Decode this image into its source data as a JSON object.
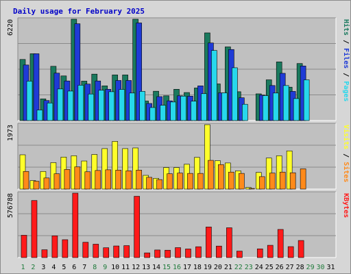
{
  "chart_data": {
    "type": "bar",
    "title": "Daily usage for February 2025",
    "colors": {
      "hits": "#1a7a5e",
      "files": "#1f3bd6",
      "pages": "#27d8ec",
      "visits": "#ffff2a",
      "sites": "#ff8a1a",
      "kbytes": "#ff1a1a",
      "background": "#d6d6d6",
      "plot": "#c0c0c0",
      "title_text": "#0000c8",
      "weekend_label": "#1e7a3a"
    },
    "days": [
      "1",
      "2",
      "3",
      "4",
      "5",
      "6",
      "7",
      "8",
      "9",
      "10",
      "11",
      "12",
      "13",
      "14",
      "15",
      "16",
      "17",
      "18",
      "19",
      "20",
      "21",
      "22",
      "23",
      "24",
      "25",
      "26",
      "27",
      "28",
      "29",
      "30",
      "31"
    ],
    "weekend_days": [
      "1",
      "2",
      "8",
      "9",
      "15",
      "16",
      "22",
      "23",
      "29",
      "30"
    ],
    "panels": [
      {
        "id": "hits-files-pages",
        "max_label": "6220",
        "ymax": 6220,
        "legend": [
          {
            "text": "Pages",
            "color_key": "pages"
          },
          {
            "text": "Files",
            "color_key": "files"
          },
          {
            "text": "Hits",
            "color_key": "hits"
          }
        ],
        "series": [
          {
            "name": "Hits",
            "color_key": "hits",
            "values": [
              3750,
              4100,
              1330,
              3330,
              2740,
              6220,
              2420,
              2850,
              2130,
              2800,
              2800,
              6220,
              1200,
              1800,
              1520,
              1920,
              1720,
              2000,
              5380,
              2250,
              4520,
              1770,
              0,
              1640,
              2500,
              3600,
              2050,
              3500,
              0,
              0,
              0
            ]
          },
          {
            "name": "Files",
            "color_key": "files",
            "values": [
              3410,
              4100,
              1230,
              2910,
              2430,
              5940,
              2240,
              2430,
              1920,
              2460,
              2460,
              5990,
              1050,
              1470,
              1210,
              1520,
              1500,
              2130,
              4760,
              1700,
              4360,
              1400,
              0,
              1560,
              2150,
              2900,
              1790,
              3350,
              0,
              0,
              0
            ]
          },
          {
            "name": "Pages",
            "color_key": "pages",
            "values": [
              2420,
              650,
              1080,
              1940,
              1810,
              2170,
              1630,
              1860,
              1770,
              1910,
              1690,
              1790,
              800,
              940,
              1140,
              1500,
              1190,
              1650,
              4300,
              1700,
              3240,
              1000,
              0,
              1530,
              1690,
              2150,
              1350,
              2500,
              0,
              0,
              0
            ]
          }
        ]
      },
      {
        "id": "visits-sites",
        "max_label": "1973",
        "ymax": 1973,
        "legend": [
          {
            "text": "Sites",
            "color_key": "sites"
          },
          {
            "text": "Visits",
            "color_key": "visits"
          }
        ],
        "series": [
          {
            "name": "Visits",
            "color_key": "visits",
            "values": [
              1050,
              260,
              540,
              810,
              980,
              1020,
              860,
              1060,
              1240,
              1460,
              1240,
              1260,
              420,
              330,
              660,
              660,
              760,
              970,
              1973,
              870,
              800,
              560,
              50,
              510,
              950,
              1020,
              1170,
              0,
              0,
              0,
              0
            ]
          },
          {
            "name": "Sites",
            "color_key": "sites",
            "values": [
              540,
              240,
              340,
              470,
              600,
              680,
              530,
              570,
              590,
              580,
              560,
              580,
              360,
              290,
              470,
              490,
              480,
              480,
              880,
              750,
              520,
              480,
              20,
              380,
              490,
              520,
              500,
              620,
              0,
              0,
              0
            ]
          }
        ]
      },
      {
        "id": "kbytes",
        "max_label": "576788",
        "ymax": 576788,
        "legend": [
          {
            "text": "KBytes",
            "color_key": "kbytes"
          }
        ],
        "series": [
          {
            "name": "KBytes",
            "color_key": "kbytes",
            "values": [
              200000,
              511000,
              70000,
              195000,
              160000,
              576788,
              137000,
              120000,
              88000,
              104000,
              107000,
              549000,
              42000,
              68000,
              66000,
              89000,
              77000,
              97000,
              274000,
              103000,
              267000,
              58000,
              0,
              78000,
              110000,
              252000,
              98000,
              153000,
              0,
              0,
              0
            ]
          }
        ]
      }
    ]
  }
}
